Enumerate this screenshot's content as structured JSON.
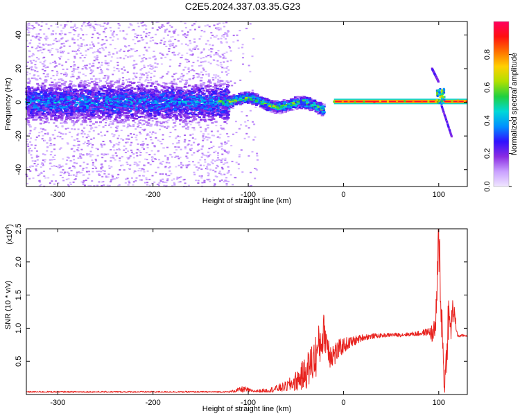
{
  "title": "C2E5.2024.337.03.35.G23",
  "chart_data": [
    {
      "type": "heatmap",
      "xlabel": "Height of straight line (km)",
      "ylabel": "Frequency (Hz)",
      "xlim": [
        -333,
        130
      ],
      "ylim": [
        -50,
        48
      ],
      "xticks": [
        -300,
        -200,
        -100,
        0,
        100
      ],
      "xtick_labels": [
        "-300",
        "-200",
        "-100",
        "0",
        "100"
      ],
      "yticks": [
        -40,
        -20,
        0,
        20,
        40
      ],
      "ytick_labels": [
        "-40",
        "-20",
        "0",
        "20",
        "40"
      ],
      "colorbar": {
        "label": "Normalized spectral amplitude",
        "range": [
          0,
          1
        ],
        "ticks": [
          0,
          0.2,
          0.4,
          0.6,
          0.8
        ],
        "tick_labels": [
          "0.0",
          "0.2",
          "0.4",
          "0.6",
          "0.8"
        ],
        "colormap": "rainbow",
        "colors": [
          "#f0e6ff",
          "#c9a0ff",
          "#8a2be2",
          "#3010ff",
          "#0090ff",
          "#00d8d8",
          "#20d040",
          "#b0e000",
          "#ffd000",
          "#ff7000",
          "#ff1010",
          "#ff0060"
        ]
      },
      "features": [
        {
          "name": "noise-band",
          "x_range": [
            -333,
            -120
          ],
          "freq_halfwidth": 10,
          "peak_amplitude": 0.35
        },
        {
          "name": "noise-sparse",
          "x_range": [
            -333,
            -90
          ],
          "freq_range": [
            -50,
            48
          ],
          "amplitude": 0.1
        },
        {
          "name": "line-emergence",
          "x_range": [
            -130,
            -20
          ],
          "freq_halfwidth": 4,
          "peak_amplitude": 0.55
        },
        {
          "name": "tone-line",
          "x_range": [
            -10,
            130
          ],
          "frequency": 0.5,
          "amplitude": 0.95
        },
        {
          "name": "drift-tail-up",
          "x": [
            93,
            100
          ],
          "freq": [
            20,
            12
          ]
        },
        {
          "name": "drift-tail-down",
          "x": [
            103,
            114
          ],
          "freq": [
            -2,
            -21
          ]
        }
      ]
    },
    {
      "type": "line",
      "xlabel": "Height of straight line (km)",
      "ylabel": "SNR (10 * v/v)",
      "y_exponent_label": "(x10",
      "y_exponent": "4",
      "xlim": [
        -333,
        130
      ],
      "ylim": [
        0,
        2.5
      ],
      "xticks": [
        -300,
        -200,
        -100,
        0,
        100
      ],
      "xtick_labels": [
        "-300",
        "-200",
        "-100",
        "0",
        "100"
      ],
      "yticks": [
        0.5,
        1.0,
        1.5,
        2.0,
        2.5
      ],
      "ytick_labels": [
        "0.5",
        "1.0",
        "1.5",
        "2.0",
        "2.5"
      ],
      "color": "#e8221e",
      "series": [
        {
          "x": [
            -333,
            -300,
            -250,
            -200,
            -150,
            -120,
            -105,
            -95,
            -80,
            -60,
            -50,
            -40,
            -30,
            -25,
            -20,
            -15,
            -10,
            -5,
            0,
            10,
            20,
            30,
            40,
            50,
            60,
            70,
            80,
            90,
            95,
            98,
            100,
            102,
            104,
            106,
            108,
            110,
            112,
            115,
            120,
            125,
            130
          ],
          "values": [
            0.04,
            0.04,
            0.04,
            0.04,
            0.04,
            0.04,
            0.08,
            0.05,
            0.06,
            0.12,
            0.2,
            0.32,
            0.55,
            0.75,
            0.95,
            0.65,
            0.6,
            0.68,
            0.74,
            0.8,
            0.86,
            0.88,
            0.89,
            0.9,
            0.9,
            0.91,
            0.92,
            0.95,
            0.9,
            1.3,
            2.5,
            1.6,
            0.8,
            0.15,
            0.5,
            1.2,
            0.95,
            1.3,
            0.88,
            0.89,
            0.89
          ],
          "noise": [
            0.01,
            0.01,
            0.01,
            0.01,
            0.01,
            0.01,
            0.05,
            0.02,
            0.03,
            0.08,
            0.15,
            0.25,
            0.35,
            0.35,
            0.3,
            0.25,
            0.2,
            0.15,
            0.12,
            0.08,
            0.05,
            0.04,
            0.03,
            0.03,
            0.03,
            0.03,
            0.04,
            0.06,
            0.2,
            0.4,
            0.6,
            0.5,
            0.4,
            0.2,
            0.3,
            0.4,
            0.3,
            0.2,
            0.02,
            0.02,
            0.02
          ]
        }
      ]
    }
  ]
}
